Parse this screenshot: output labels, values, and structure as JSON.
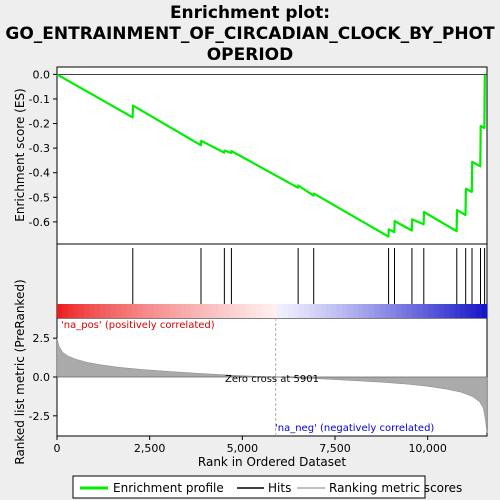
{
  "title_lines": [
    "Enrichment plot:",
    "GO_ENTRAINMENT_OF_CIRCADIAN_CLOCK_BY_PHOT",
    "OPERIOD"
  ],
  "legend": {
    "enrichment_profile": "Enrichment profile",
    "hits": "Hits",
    "ranking_metric": "Ranking metric scores"
  },
  "colors": {
    "enrichment_line": "#00ee00",
    "pos_label": "#dd0000",
    "neg_label": "#0000dd",
    "metric_fill": "#aaaaaa"
  },
  "chart_data": {
    "type": "line",
    "x_axis": {
      "label": "Rank in Ordered Dataset",
      "lim": [
        0,
        11600
      ],
      "ticks": [
        0,
        2500,
        5000,
        7500,
        10000
      ],
      "tick_labels": [
        "0",
        "2,500",
        "5,000",
        "7,500",
        "10,000"
      ]
    },
    "es_panel": {
      "ylabel": "Enrichment score (ES)",
      "ylim": [
        -0.69,
        0.03
      ],
      "yticks": [
        0.0,
        -0.1,
        -0.2,
        -0.3,
        -0.4,
        -0.5,
        -0.6
      ],
      "ytick_labels": [
        "0.0",
        "-0.1",
        "-0.2",
        "-0.3",
        "-0.4",
        "-0.5",
        "-0.6"
      ],
      "profile": {
        "x": [
          0,
          2040,
          2050,
          3880,
          3890,
          4510,
          4520,
          4700,
          4710,
          6500,
          6510,
          6920,
          6930,
          8940,
          8950,
          9100,
          9110,
          9570,
          9580,
          9890,
          9900,
          10780,
          10790,
          11020,
          11030,
          11190,
          11200,
          11420,
          11430,
          11530,
          11540
        ],
        "y": [
          0.0,
          -0.175,
          -0.127,
          -0.288,
          -0.27,
          -0.318,
          -0.31,
          -0.32,
          -0.312,
          -0.461,
          -0.452,
          -0.493,
          -0.485,
          -0.66,
          -0.63,
          -0.642,
          -0.597,
          -0.635,
          -0.59,
          -0.61,
          -0.56,
          -0.638,
          -0.552,
          -0.572,
          -0.465,
          -0.478,
          -0.356,
          -0.374,
          -0.21,
          -0.218,
          0.0
        ]
      },
      "hits": [
        2045,
        3885,
        4515,
        4705,
        6505,
        6925,
        8945,
        9105,
        9575,
        9895,
        10785,
        11025,
        11195,
        11425,
        11535
      ]
    },
    "metric_panel": {
      "ylabel": "Ranked list metric (PreRanked)",
      "ylim": [
        -3.8,
        3.8
      ],
      "yticks": [
        2.5,
        0.0,
        -2.5
      ],
      "ytick_labels": [
        "2.5",
        "0.0",
        "-2.5"
      ],
      "curve": {
        "x": [
          0,
          50,
          150,
          300,
          500,
          800,
          1200,
          1700,
          2300,
          3000,
          3800,
          4600,
          5400,
          5901,
          6500,
          7200,
          8000,
          8800,
          9500,
          10000,
          10500,
          10900,
          11200,
          11400,
          11500,
          11560,
          11600
        ],
        "y": [
          2.5,
          2.0,
          1.6,
          1.35,
          1.15,
          0.95,
          0.78,
          0.62,
          0.48,
          0.36,
          0.24,
          0.13,
          0.04,
          0.0,
          -0.06,
          -0.13,
          -0.23,
          -0.34,
          -0.47,
          -0.6,
          -0.78,
          -0.98,
          -1.25,
          -1.6,
          -2.0,
          -2.8,
          -3.6
        ]
      },
      "zero_cross": 5901,
      "zero_cross_label": "Zero cross at 5901",
      "pos_label": "'na_pos' (positively correlated)",
      "neg_label": "'na_neg' (negatively correlated)"
    }
  }
}
